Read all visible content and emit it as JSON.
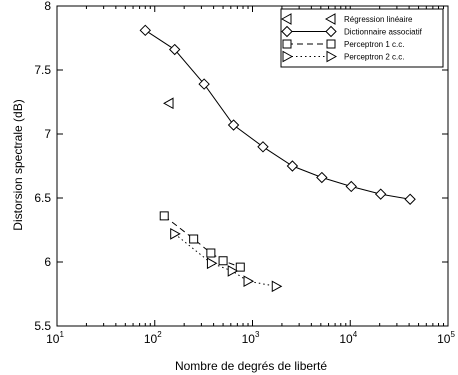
{
  "chart_data": {
    "type": "scatter",
    "title": "",
    "xlabel": "Nombre de degrés de liberté",
    "ylabel": "Distorsion spectrale (dB)",
    "xscale": "log",
    "xlim": [
      10,
      100000
    ],
    "ylim": [
      5.5,
      8
    ],
    "x_ticks": [
      {
        "base": "10",
        "exp": "1"
      },
      {
        "base": "10",
        "exp": "2"
      },
      {
        "base": "10",
        "exp": "3"
      },
      {
        "base": "10",
        "exp": "4"
      },
      {
        "base": "10",
        "exp": "5"
      }
    ],
    "y_ticks": [
      "5.5",
      "6",
      "6.5",
      "7",
      "7.5",
      "8"
    ],
    "grid": false,
    "legend_position": "top-right",
    "series": [
      {
        "name": "Régression linéaire",
        "marker": "triangle-left",
        "line": "none",
        "points": [
          [
            140,
            7.24
          ]
        ]
      },
      {
        "name": "Dictionnaire associatif",
        "marker": "diamond",
        "line": "solid",
        "points": [
          [
            80,
            7.81
          ],
          [
            160,
            7.66
          ],
          [
            320,
            7.39
          ],
          [
            640,
            7.07
          ],
          [
            1280,
            6.9
          ],
          [
            2560,
            6.75
          ],
          [
            5120,
            6.66
          ],
          [
            10240,
            6.59
          ],
          [
            20480,
            6.53
          ],
          [
            40960,
            6.49
          ]
        ]
      },
      {
        "name": "Perceptron 1 c.c.",
        "marker": "square",
        "line": "dashed",
        "points": [
          [
            125,
            6.36
          ],
          [
            250,
            6.18
          ],
          [
            375,
            6.07
          ],
          [
            500,
            6.01
          ],
          [
            750,
            5.96
          ]
        ]
      },
      {
        "name": "Perceptron 2 c.c.",
        "marker": "triangle-right",
        "line": "dotted",
        "points": [
          [
            160,
            6.22
          ],
          [
            380,
            5.99
          ],
          [
            620,
            5.93
          ],
          [
            900,
            5.85
          ],
          [
            1750,
            5.81
          ]
        ]
      }
    ]
  }
}
